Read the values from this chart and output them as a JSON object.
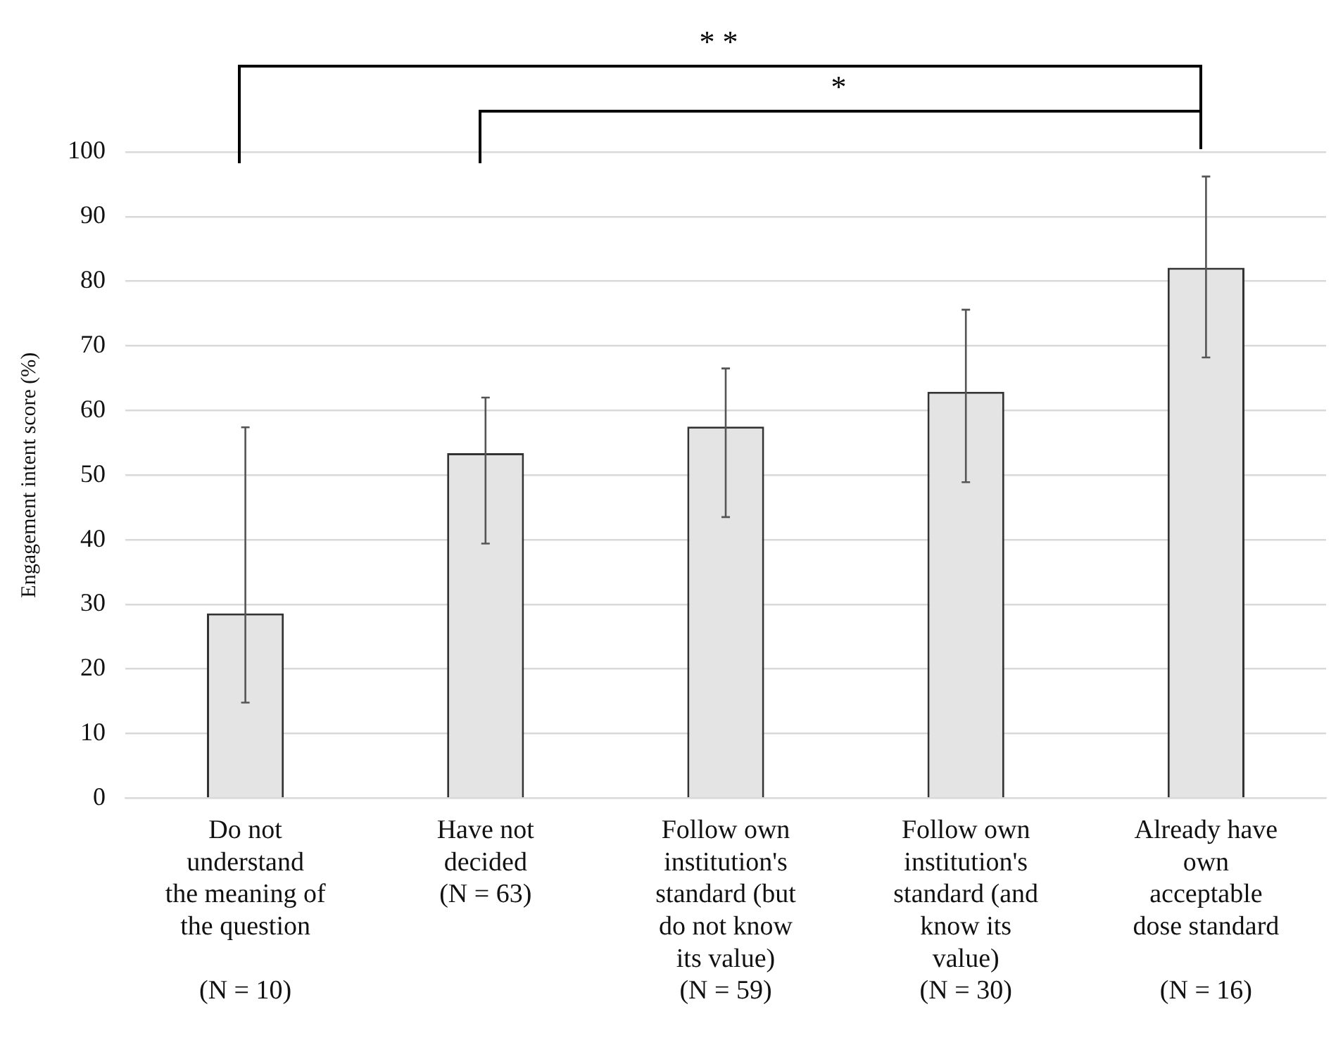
{
  "chart_data": {
    "type": "bar",
    "ylabel": "Engagement intent score (%)",
    "categories": [
      "Do not\nunderstand\nthe meaning of\nthe question\n\n(N = 10)",
      "Have not\ndecided\n(N = 63)",
      "Follow own\ninstitution's\nstandard (but\ndo not know\nits value)\n(N = 59)",
      "Follow own\ninstitution's\nstandard (and\nknow its\nvalue)\n(N = 30)",
      "Already have\nown\nacceptable\ndose standard\n\n(N = 16)"
    ],
    "values": [
      28.6,
      53.4,
      57.5,
      62.9,
      82.1
    ],
    "errors": [
      [
        14.8,
        57.4
      ],
      [
        39.4,
        62.0
      ],
      [
        43.5,
        66.5
      ],
      [
        48.9,
        75.6
      ],
      [
        68.2,
        96.2
      ]
    ],
    "color": "#e4e4e4",
    "ylim": [
      0,
      100
    ],
    "yticks": [
      0,
      10,
      20,
      30,
      40,
      50,
      60,
      70,
      80,
      90,
      100
    ],
    "grid": "y",
    "annotations": [
      "* *",
      "*"
    ]
  }
}
